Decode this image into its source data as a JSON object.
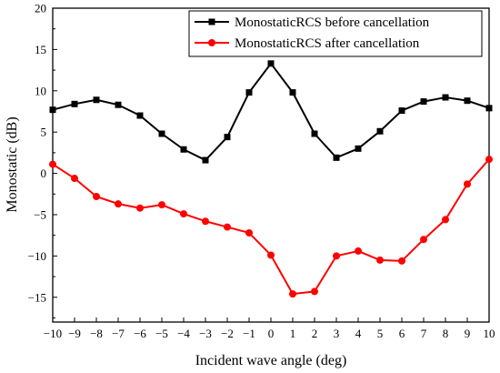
{
  "chart_data": {
    "type": "line",
    "title": "",
    "xlabel": "Incident wave angle (deg)",
    "ylabel": "Monostatic (dB)",
    "xlim": [
      -10,
      10
    ],
    "ylim": [
      -18,
      20
    ],
    "x_ticks": [
      -10,
      -9,
      -8,
      -7,
      -6,
      -5,
      -4,
      -3,
      -2,
      -1,
      0,
      1,
      2,
      3,
      4,
      5,
      6,
      7,
      8,
      9,
      10
    ],
    "y_ticks": [
      -15,
      -10,
      -5,
      0,
      5,
      10,
      15,
      20
    ],
    "grid": false,
    "legend_position": "top-right",
    "x": [
      -10,
      -9,
      -8,
      -7,
      -6,
      -5,
      -4,
      -3,
      -2,
      -1,
      0,
      1,
      2,
      3,
      4,
      5,
      6,
      7,
      8,
      9,
      10
    ],
    "series": [
      {
        "name": "MonostaticRCS before cancellation",
        "color": "#000000",
        "marker": "square",
        "values": [
          7.7,
          8.4,
          8.9,
          8.3,
          7.0,
          4.8,
          2.9,
          1.6,
          4.4,
          9.8,
          13.3,
          9.8,
          4.8,
          1.9,
          3.0,
          5.1,
          7.6,
          8.7,
          9.2,
          8.8,
          7.9
        ]
      },
      {
        "name": "MonostaticRCS after cancellation",
        "color": "#ff0000",
        "marker": "circle",
        "values": [
          1.1,
          -0.6,
          -2.8,
          -3.7,
          -4.2,
          -3.8,
          -4.9,
          -5.8,
          -6.5,
          -7.2,
          -9.9,
          -14.6,
          -14.3,
          -10.0,
          -9.4,
          -10.5,
          -10.6,
          -8.0,
          -5.6,
          -1.3,
          1.7
        ]
      }
    ]
  }
}
